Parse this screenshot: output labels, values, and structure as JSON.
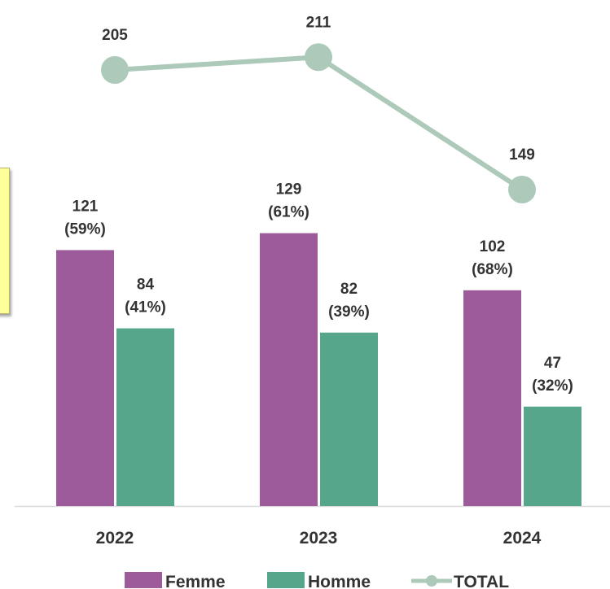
{
  "chart_data": {
    "type": "bar",
    "categories": [
      "2022",
      "2023",
      "2024"
    ],
    "series": [
      {
        "name": "Femme",
        "type": "bar",
        "color": "#9e5b9c",
        "values": [
          121,
          129,
          102
        ],
        "labels": [
          "121",
          "129",
          "102"
        ],
        "pct_labels": [
          "(59%)",
          "(61%)",
          "(68%)"
        ]
      },
      {
        "name": "Homme",
        "type": "bar",
        "color": "#55a68b",
        "values": [
          84,
          82,
          47
        ],
        "labels": [
          "84",
          "82",
          "47"
        ],
        "pct_labels": [
          "(41%)",
          "(39%)",
          "(32%)"
        ]
      },
      {
        "name": "TOTAL",
        "type": "line",
        "color": "#acc9b9",
        "values": [
          205,
          211,
          149
        ],
        "labels": [
          "205",
          "211",
          "149"
        ]
      }
    ],
    "legend_position": "bottom",
    "grid": false,
    "title": "",
    "xlabel": "",
    "ylabel": ""
  }
}
